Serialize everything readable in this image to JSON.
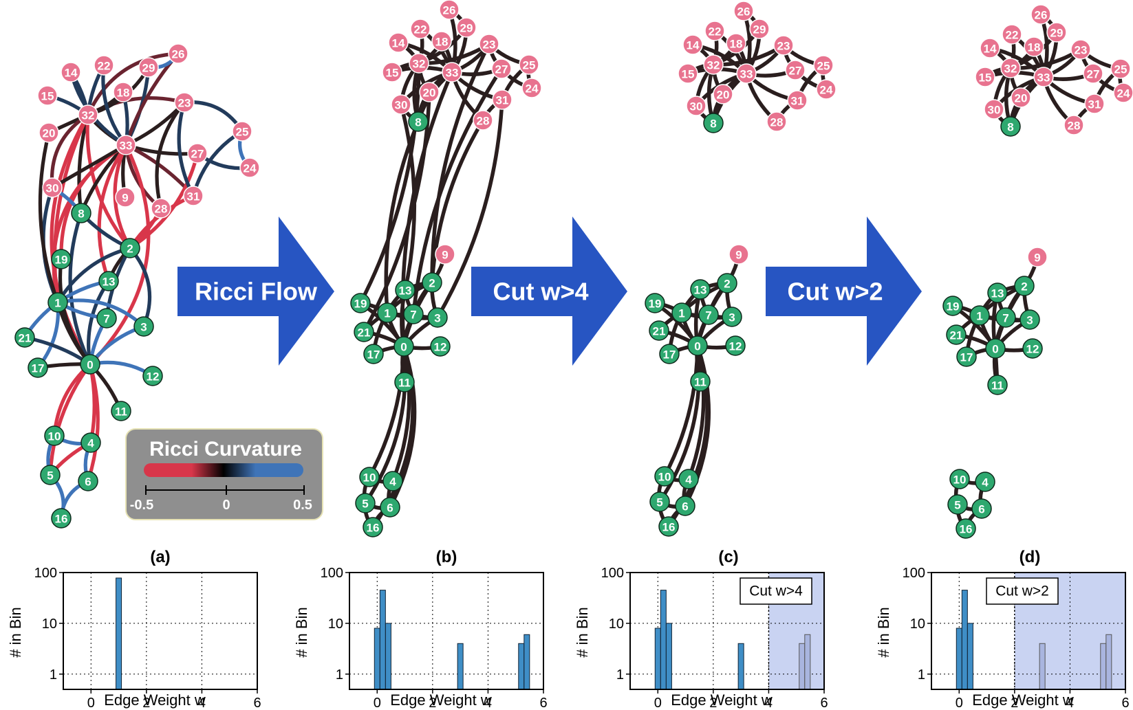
{
  "colors": {
    "pink_node": "#e8738f",
    "green_node": "#2ea86f",
    "edge_dark": "#2a1e1e",
    "edge_red": "#d8364a",
    "edge_blue": "#3f74b8",
    "edge_navy": "#223b5b",
    "arrow_blue": "#2755c2",
    "bar_fill": "#3f8ec6",
    "cut_region": "#c9d3f2",
    "legend_bg": "#8f8f8f"
  },
  "arrows": [
    {
      "label": "Ricci Flow"
    },
    {
      "label": "Cut w>4"
    },
    {
      "label": "Cut w>2"
    }
  ],
  "legend": {
    "title": "Ricci Curvature",
    "ticks": [
      "-0.5",
      "0",
      "0.5"
    ],
    "gradient": [
      "#d8364a",
      "#000000",
      "#3f74b8"
    ]
  },
  "panels": [
    {
      "letter": "(a)",
      "nodes": [
        {
          "id": "26",
          "group": "pink"
        },
        {
          "id": "14",
          "group": "pink"
        },
        {
          "id": "22",
          "group": "pink"
        },
        {
          "id": "29",
          "group": "pink"
        },
        {
          "id": "15",
          "group": "pink"
        },
        {
          "id": "18",
          "group": "pink"
        },
        {
          "id": "32",
          "group": "pink"
        },
        {
          "id": "23",
          "group": "pink"
        },
        {
          "id": "20",
          "group": "pink"
        },
        {
          "id": "33",
          "group": "pink"
        },
        {
          "id": "25",
          "group": "pink"
        },
        {
          "id": "27",
          "group": "pink"
        },
        {
          "id": "24",
          "group": "pink"
        },
        {
          "id": "30",
          "group": "pink"
        },
        {
          "id": "9",
          "group": "pink"
        },
        {
          "id": "31",
          "group": "pink"
        },
        {
          "id": "28",
          "group": "pink"
        },
        {
          "id": "8",
          "group": "green"
        },
        {
          "id": "2",
          "group": "green"
        },
        {
          "id": "19",
          "group": "green"
        },
        {
          "id": "13",
          "group": "green"
        },
        {
          "id": "1",
          "group": "green"
        },
        {
          "id": "7",
          "group": "green"
        },
        {
          "id": "3",
          "group": "green"
        },
        {
          "id": "21",
          "group": "green"
        },
        {
          "id": "0",
          "group": "green"
        },
        {
          "id": "17",
          "group": "green"
        },
        {
          "id": "12",
          "group": "green"
        },
        {
          "id": "11",
          "group": "green"
        },
        {
          "id": "10",
          "group": "green"
        },
        {
          "id": "4",
          "group": "green"
        },
        {
          "id": "5",
          "group": "green"
        },
        {
          "id": "6",
          "group": "green"
        },
        {
          "id": "16",
          "group": "green"
        }
      ]
    },
    {
      "letter": "(b)"
    },
    {
      "letter": "(c)",
      "cut_label": "Cut w>4"
    },
    {
      "letter": "(d)",
      "cut_label": "Cut w>2"
    }
  ],
  "histogram": {
    "xlabel": "Edge Weight w",
    "ylabel": "# in Bin",
    "x_ticks": [
      "0",
      "2",
      "4",
      "6"
    ],
    "y_ticks": [
      "100",
      "10",
      "1"
    ]
  },
  "chart_data": [
    {
      "type": "bar",
      "title": "(a)",
      "xlabel": "Edge Weight w",
      "ylabel": "# in Bin",
      "xlim": [
        -1,
        6
      ],
      "ylim": [
        0.5,
        100
      ],
      "yscale": "log",
      "bins": [
        {
          "x": 1.0,
          "count": 78
        }
      ]
    },
    {
      "type": "bar",
      "title": "(b)",
      "xlabel": "Edge Weight w",
      "ylabel": "# in Bin",
      "xlim": [
        -1,
        6
      ],
      "ylim": [
        0.5,
        100
      ],
      "yscale": "log",
      "bins": [
        {
          "x": 0.0,
          "count": 8
        },
        {
          "x": 0.2,
          "count": 45
        },
        {
          "x": 0.4,
          "count": 10
        },
        {
          "x": 3.0,
          "count": 4
        },
        {
          "x": 5.2,
          "count": 4
        },
        {
          "x": 5.4,
          "count": 6
        }
      ]
    },
    {
      "type": "bar",
      "title": "(c)",
      "xlabel": "Edge Weight w",
      "ylabel": "# in Bin",
      "xlim": [
        -1,
        6
      ],
      "ylim": [
        0.5,
        100
      ],
      "yscale": "log",
      "cut_threshold": 4,
      "bins": [
        {
          "x": 0.0,
          "count": 8
        },
        {
          "x": 0.2,
          "count": 45
        },
        {
          "x": 0.4,
          "count": 10
        },
        {
          "x": 3.0,
          "count": 4
        },
        {
          "x": 5.2,
          "count": 4
        },
        {
          "x": 5.4,
          "count": 6
        }
      ]
    },
    {
      "type": "bar",
      "title": "(d)",
      "xlabel": "Edge Weight w",
      "ylabel": "# in Bin",
      "xlim": [
        -1,
        6
      ],
      "ylim": [
        0.5,
        100
      ],
      "yscale": "log",
      "cut_threshold": 2,
      "bins": [
        {
          "x": 0.0,
          "count": 8
        },
        {
          "x": 0.2,
          "count": 45
        },
        {
          "x": 0.4,
          "count": 10
        },
        {
          "x": 3.0,
          "count": 4
        },
        {
          "x": 5.2,
          "count": 4
        },
        {
          "x": 5.4,
          "count": 6
        }
      ]
    }
  ]
}
